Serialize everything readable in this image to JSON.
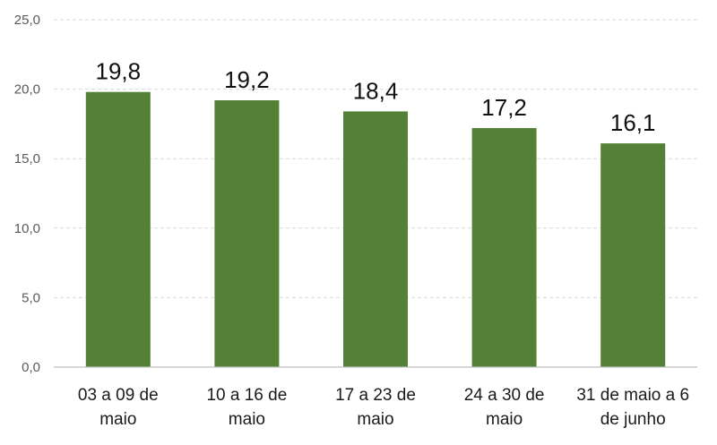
{
  "chart_data": {
    "type": "bar",
    "categories": [
      [
        "03 a 09 de",
        "maio"
      ],
      [
        "10 a 16 de",
        "maio"
      ],
      [
        "17 a 23 de",
        "maio"
      ],
      [
        "24 a 30 de",
        "maio"
      ],
      [
        "31 de maio a 6",
        "de junho"
      ]
    ],
    "values": [
      19.8,
      19.2,
      18.4,
      17.2,
      16.1
    ],
    "data_labels": [
      "19,8",
      "19,2",
      "18,4",
      "17,2",
      "16,1"
    ],
    "ylim": [
      0,
      25
    ],
    "yticks": [
      0,
      5,
      10,
      15,
      20,
      25
    ],
    "ytick_labels": [
      "0,0",
      "5,0",
      "10,0",
      "15,0",
      "20,0",
      "25,0"
    ],
    "grid": true,
    "bar_color": "#538135",
    "title": "",
    "xlabel": "",
    "ylabel": ""
  }
}
